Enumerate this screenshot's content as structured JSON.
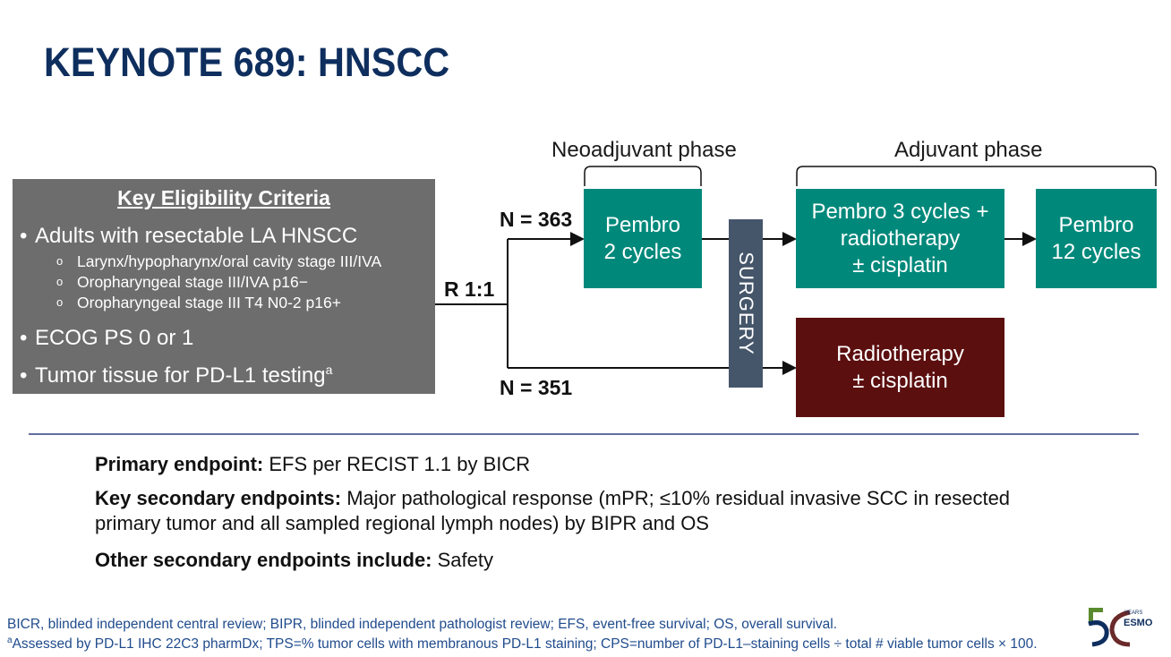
{
  "title": "KEYNOTE 689: HNSCC",
  "criteria": {
    "heading": "Key Eligibility Criteria",
    "items": [
      {
        "text": "Adults with resectable LA HNSCC"
      },
      {
        "text": "ECOG PS 0 or 1"
      },
      {
        "text": "Tumor tissue for PD-L1 testing",
        "sup": "a"
      }
    ],
    "subitems": [
      "Larynx/hypopharynx/oral cavity stage III/IVA",
      "Oropharyngeal stage III/IVA p16−",
      "Oropharyngeal stage III T4 N0-2 p16+"
    ],
    "bullet": "•",
    "subbullet": "o"
  },
  "randomization": "R 1:1",
  "arms": {
    "upper_n": "N = 363",
    "lower_n": "N = 351"
  },
  "phases": {
    "neoadjuvant": "Neoadjuvant phase",
    "adjuvant": "Adjuvant phase"
  },
  "boxes": {
    "pembro_neo": [
      "Pembro",
      "2 cycles"
    ],
    "surgery": "SURGERY",
    "pembro_rt": [
      "Pembro 3 cycles +",
      "radiotherapy",
      "± cisplatin"
    ],
    "pembro_maint": [
      "Pembro",
      "12 cycles"
    ],
    "control_rt": [
      "Radiotherapy",
      "± cisplatin"
    ]
  },
  "endpoints": {
    "primary_label": "Primary endpoint:",
    "primary_text": " EFS per RECIST 1.1 by BICR",
    "secondary_label": "Key secondary endpoints:",
    "secondary_text_1": " Major pathological response (mPR; ≤10% residual invasive SCC in resected",
    "secondary_text_2": "primary tumor and all sampled regional lymph nodes) by BIPR and OS",
    "other_label": "Other secondary endpoints include:",
    "other_text": " Safety"
  },
  "footnotes": {
    "line1": "BICR, blinded independent central review; BIPR, blinded independent pathologist review; EFS, event-free survival; OS, overall survival.",
    "line2_sup": "a",
    "line2": "Assessed by PD-L1 IHC 22C3 pharmDx; TPS=% tumor cells with membranous PD-L1 staining; CPS=number of PD-L1–staining cells ÷ total # viable tumor cells × 100."
  },
  "logo": {
    "text": "ESMO",
    "subtext": "YEARS"
  },
  "colors": {
    "title": "#0e2e5e",
    "criteria_box": "#6d6d6d",
    "teal": "#00897b",
    "maroon": "#5c0f0f",
    "surgery": "#45566a",
    "footnote": "#1f4b8c",
    "divider": "#2c3e7a"
  }
}
